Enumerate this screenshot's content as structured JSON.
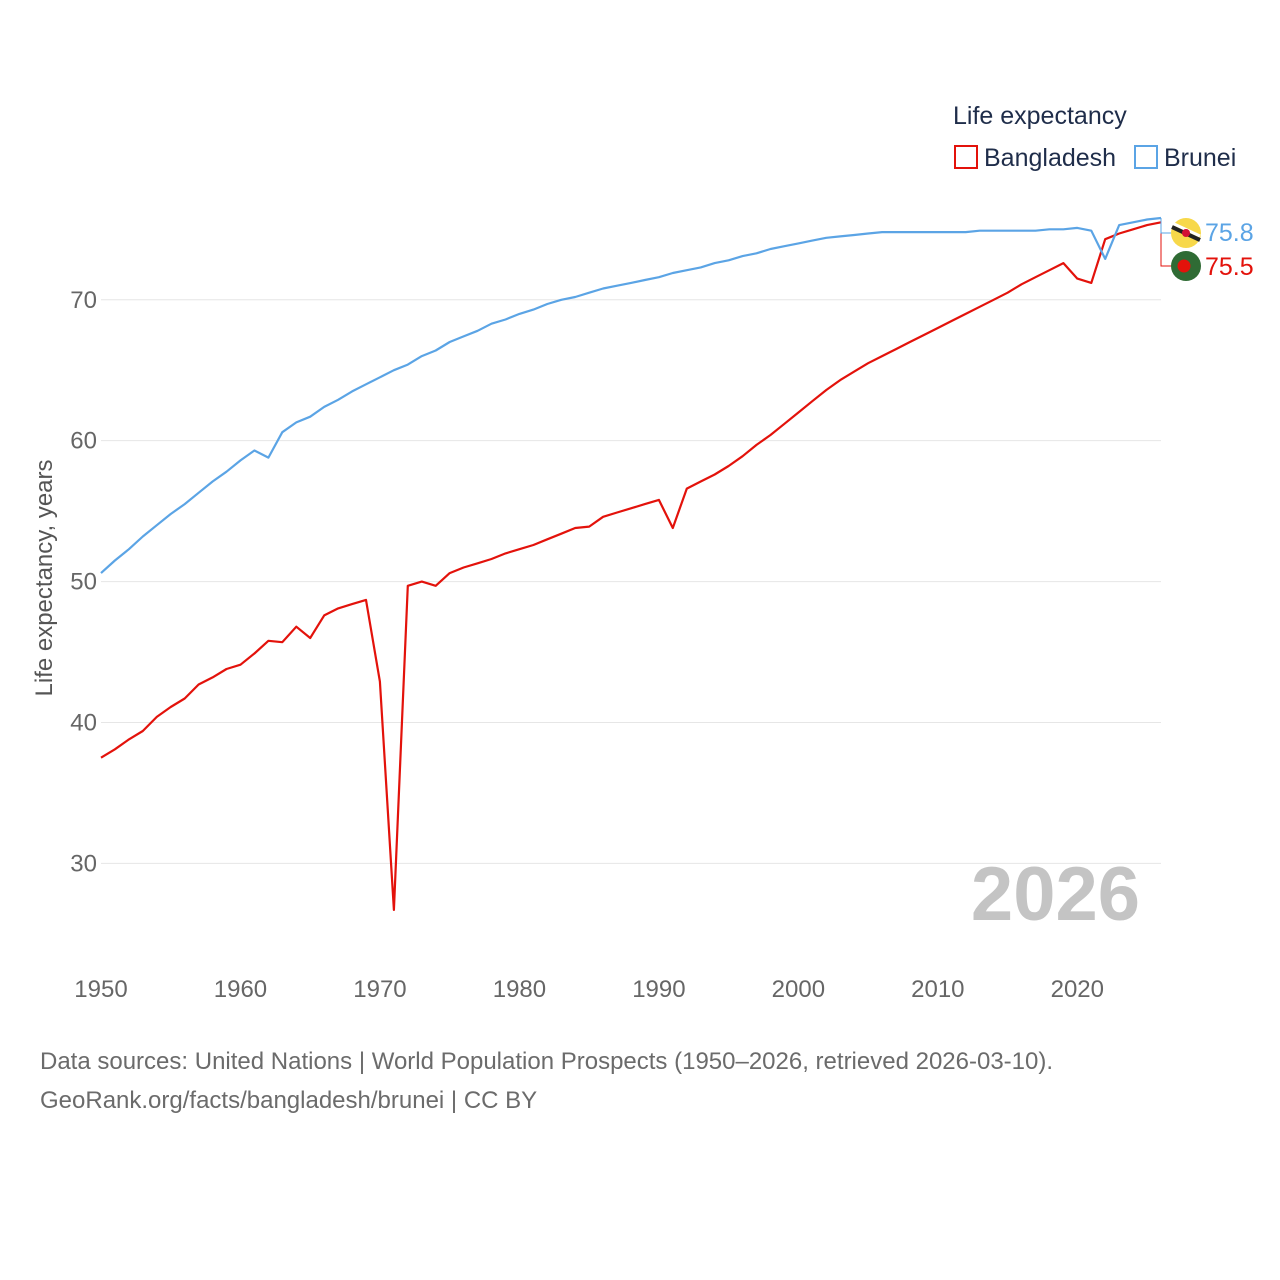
{
  "chart_data": {
    "type": "line",
    "legend_title": "Life expectancy",
    "ylabel": "Life expectancy, years",
    "xlabel": "",
    "xlim": [
      1950,
      2026
    ],
    "ylim": [
      23.5,
      78.5
    ],
    "x_ticks": [
      1950,
      1960,
      1970,
      1980,
      1990,
      2000,
      2010,
      2020
    ],
    "y_ticks": [
      30,
      40,
      50,
      60,
      70
    ],
    "x_tick_labels": [
      "1950",
      "1960",
      "1970",
      "1980",
      "1990",
      "2000",
      "2010",
      "2020"
    ],
    "y_tick_labels": [
      "30",
      "40",
      "50",
      "60",
      "70"
    ],
    "grid": true,
    "legend_position": "top-right",
    "year_label": "2026",
    "series": [
      {
        "name": "Bangladesh",
        "color": "#e3120b",
        "end_label": "75.5",
        "flag_icon": "bangladesh-flag-icon",
        "points": [
          [
            1950,
            37.5
          ],
          [
            1951,
            38.1
          ],
          [
            1952,
            38.8
          ],
          [
            1953,
            39.4
          ],
          [
            1954,
            40.4
          ],
          [
            1955,
            41.1
          ],
          [
            1956,
            41.7
          ],
          [
            1957,
            42.7
          ],
          [
            1958,
            43.2
          ],
          [
            1959,
            43.8
          ],
          [
            1960,
            44.1
          ],
          [
            1961,
            44.9
          ],
          [
            1962,
            45.8
          ],
          [
            1963,
            45.7
          ],
          [
            1964,
            46.8
          ],
          [
            1965,
            46.0
          ],
          [
            1966,
            47.6
          ],
          [
            1967,
            48.1
          ],
          [
            1968,
            48.4
          ],
          [
            1969,
            48.7
          ],
          [
            1970,
            42.9
          ],
          [
            1971,
            26.7
          ],
          [
            1972,
            49.7
          ],
          [
            1973,
            50.0
          ],
          [
            1974,
            49.7
          ],
          [
            1975,
            50.6
          ],
          [
            1976,
            51.0
          ],
          [
            1977,
            51.3
          ],
          [
            1978,
            51.6
          ],
          [
            1979,
            52.0
          ],
          [
            1980,
            52.3
          ],
          [
            1981,
            52.6
          ],
          [
            1982,
            53.0
          ],
          [
            1983,
            53.4
          ],
          [
            1984,
            53.8
          ],
          [
            1985,
            53.9
          ],
          [
            1986,
            54.6
          ],
          [
            1987,
            54.9
          ],
          [
            1988,
            55.2
          ],
          [
            1989,
            55.5
          ],
          [
            1990,
            55.8
          ],
          [
            1991,
            53.8
          ],
          [
            1992,
            56.6
          ],
          [
            1993,
            57.1
          ],
          [
            1994,
            57.6
          ],
          [
            1995,
            58.2
          ],
          [
            1996,
            58.9
          ],
          [
            1997,
            59.7
          ],
          [
            1998,
            60.4
          ],
          [
            1999,
            61.2
          ],
          [
            2000,
            62.0
          ],
          [
            2001,
            62.8
          ],
          [
            2002,
            63.6
          ],
          [
            2003,
            64.3
          ],
          [
            2004,
            64.9
          ],
          [
            2005,
            65.5
          ],
          [
            2006,
            66.0
          ],
          [
            2007,
            66.5
          ],
          [
            2008,
            67.0
          ],
          [
            2009,
            67.5
          ],
          [
            2010,
            68.0
          ],
          [
            2011,
            68.5
          ],
          [
            2012,
            69.0
          ],
          [
            2013,
            69.5
          ],
          [
            2014,
            70.0
          ],
          [
            2015,
            70.5
          ],
          [
            2016,
            71.1
          ],
          [
            2017,
            71.6
          ],
          [
            2018,
            72.1
          ],
          [
            2019,
            72.6
          ],
          [
            2020,
            71.5
          ],
          [
            2021,
            71.2
          ],
          [
            2022,
            74.3
          ],
          [
            2023,
            74.7
          ],
          [
            2024,
            75.0
          ],
          [
            2025,
            75.3
          ],
          [
            2026,
            75.5
          ]
        ]
      },
      {
        "name": "Brunei",
        "color": "#5ba4e5",
        "end_label": "75.8",
        "flag_icon": "brunei-flag-icon",
        "points": [
          [
            1950,
            50.6
          ],
          [
            1951,
            51.5
          ],
          [
            1952,
            52.3
          ],
          [
            1953,
            53.2
          ],
          [
            1954,
            54.0
          ],
          [
            1955,
            54.8
          ],
          [
            1956,
            55.5
          ],
          [
            1957,
            56.3
          ],
          [
            1958,
            57.1
          ],
          [
            1959,
            57.8
          ],
          [
            1960,
            58.6
          ],
          [
            1961,
            59.3
          ],
          [
            1962,
            58.8
          ],
          [
            1963,
            60.6
          ],
          [
            1964,
            61.3
          ],
          [
            1965,
            61.7
          ],
          [
            1966,
            62.4
          ],
          [
            1967,
            62.9
          ],
          [
            1968,
            63.5
          ],
          [
            1969,
            64.0
          ],
          [
            1970,
            64.5
          ],
          [
            1971,
            65.0
          ],
          [
            1972,
            65.4
          ],
          [
            1973,
            66.0
          ],
          [
            1974,
            66.4
          ],
          [
            1975,
            67.0
          ],
          [
            1976,
            67.4
          ],
          [
            1977,
            67.8
          ],
          [
            1978,
            68.3
          ],
          [
            1979,
            68.6
          ],
          [
            1980,
            69.0
          ],
          [
            1981,
            69.3
          ],
          [
            1982,
            69.7
          ],
          [
            1983,
            70.0
          ],
          [
            1984,
            70.2
          ],
          [
            1985,
            70.5
          ],
          [
            1986,
            70.8
          ],
          [
            1987,
            71.0
          ],
          [
            1988,
            71.2
          ],
          [
            1989,
            71.4
          ],
          [
            1990,
            71.6
          ],
          [
            1991,
            71.9
          ],
          [
            1992,
            72.1
          ],
          [
            1993,
            72.3
          ],
          [
            1994,
            72.6
          ],
          [
            1995,
            72.8
          ],
          [
            1996,
            73.1
          ],
          [
            1997,
            73.3
          ],
          [
            1998,
            73.6
          ],
          [
            1999,
            73.8
          ],
          [
            2000,
            74.0
          ],
          [
            2001,
            74.2
          ],
          [
            2002,
            74.4
          ],
          [
            2003,
            74.5
          ],
          [
            2004,
            74.6
          ],
          [
            2005,
            74.7
          ],
          [
            2006,
            74.8
          ],
          [
            2007,
            74.8
          ],
          [
            2008,
            74.8
          ],
          [
            2009,
            74.8
          ],
          [
            2010,
            74.8
          ],
          [
            2011,
            74.8
          ],
          [
            2012,
            74.8
          ],
          [
            2013,
            74.9
          ],
          [
            2014,
            74.9
          ],
          [
            2015,
            74.9
          ],
          [
            2016,
            74.9
          ],
          [
            2017,
            74.9
          ],
          [
            2018,
            75.0
          ],
          [
            2019,
            75.0
          ],
          [
            2020,
            75.1
          ],
          [
            2021,
            74.9
          ],
          [
            2022,
            72.9
          ],
          [
            2023,
            75.3
          ],
          [
            2024,
            75.5
          ],
          [
            2025,
            75.7
          ],
          [
            2026,
            75.8
          ]
        ]
      }
    ]
  },
  "footer": {
    "line1": "Data sources: United Nations | World Population Prospects (1950–2026, retrieved 2026-03-10).",
    "line2": "GeoRank.org/facts/bangladesh/brunei | CC BY"
  }
}
